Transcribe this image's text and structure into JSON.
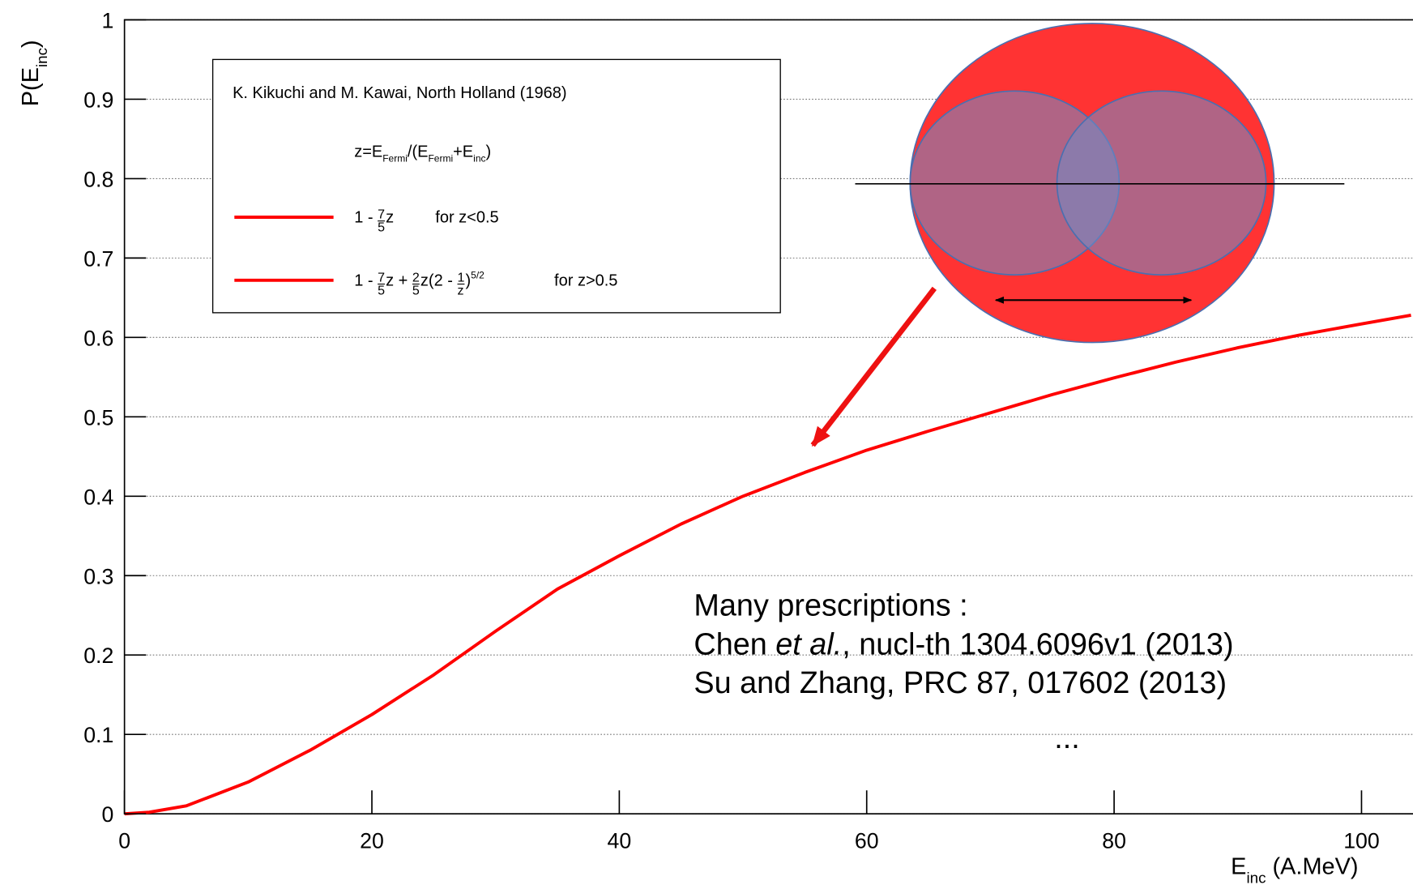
{
  "chart_data": {
    "type": "line",
    "ylabel": [
      {
        "text": "P(E"
      },
      {
        "sub": "inc"
      },
      {
        "text": ")"
      }
    ],
    "xlabel": [
      {
        "text": "E"
      },
      {
        "sub": "inc"
      },
      {
        "text": " (A.MeV)"
      }
    ],
    "x": [
      0,
      2,
      5,
      10,
      15,
      20,
      25,
      30,
      35,
      40,
      45,
      50,
      55,
      60,
      65,
      70,
      75,
      80,
      85,
      90,
      95,
      100,
      104
    ],
    "series": [
      {
        "color": "#ff0000",
        "values": [
          0,
          0.002,
          0.01,
          0.04,
          0.08,
          0.125,
          0.175,
          0.23,
          0.283,
          0.325,
          0.365,
          0.4,
          0.43,
          0.458,
          0.482,
          0.505,
          0.528,
          0.549,
          0.569,
          0.587,
          0.603,
          0.617,
          0.628
        ]
      }
    ],
    "xlim": [
      0,
      104.15
    ],
    "ylim": [
      0,
      1
    ],
    "xticks": [
      0,
      20,
      40,
      60,
      80,
      100
    ],
    "yticks": [
      0,
      0.1,
      0.2,
      0.3,
      0.4,
      0.5,
      0.6,
      0.7,
      0.8,
      0.9,
      1
    ],
    "grid": true,
    "legend": {
      "title": "K. Kikuchi and M. Kawai, North Holland (1968)",
      "formula": [
        {
          "text": "z=E"
        },
        {
          "sub": "Fermi"
        },
        {
          "text": "/(E"
        },
        {
          "sub": "Fermi"
        },
        {
          "text": "+E"
        },
        {
          "sub": "inc"
        },
        {
          "text": ")"
        }
      ],
      "entries": [
        {
          "color": "#ff0000",
          "label": [
            {
              "text": "1 - "
            },
            {
              "num": "7",
              "den": "5"
            },
            {
              "text": "z"
            }
          ],
          "note": "for z<0.5"
        },
        {
          "color": "#ff0000",
          "label": [
            {
              "text": "1 - "
            },
            {
              "num": "7",
              "den": "5"
            },
            {
              "text": "z + "
            },
            {
              "num": "2",
              "den": "5"
            },
            {
              "text": "z(2 - "
            },
            {
              "num": "1",
              "den": "z"
            },
            {
              "text": ")"
            },
            {
              "sup": "5/2"
            }
          ],
          "note": "for z>0.5"
        }
      ]
    },
    "annotations": {
      "heading": "Many prescriptions :",
      "ref1": [
        {
          "text": "Chen "
        },
        {
          "italic": "et al."
        },
        {
          "text": ", nucl-th 1304.6096v1 (2013)"
        }
      ],
      "ref2": "Su and Zhang, PRC 87, 017602 (2013)",
      "more": "..."
    }
  }
}
